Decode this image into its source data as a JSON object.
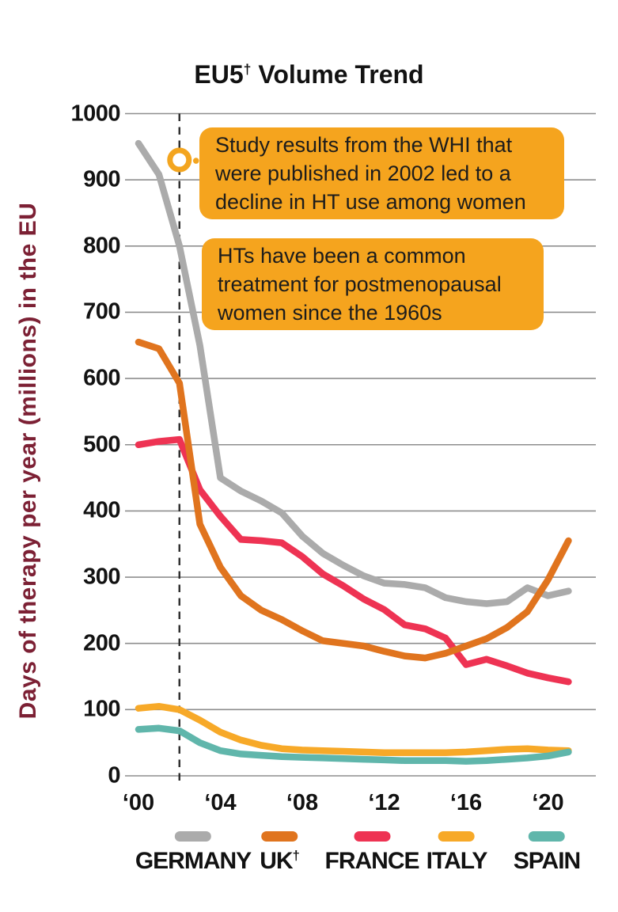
{
  "title": {
    "prefix": "EU5",
    "dagger": "†",
    "suffix": " Volume Trend"
  },
  "y_axis_label": "Days of therapy per year (millions) in the EU",
  "annotations": [
    {
      "name": "whi-study-callout",
      "lines": [
        "Study results from the WHI that",
        "were published in 2002 led to a",
        "decline in HT use among women"
      ]
    },
    {
      "name": "ht-history-callout",
      "lines": [
        "HTs have been a common",
        "treatment for postmenopausal",
        "women since the 1960s"
      ]
    }
  ],
  "colors": {
    "callout_bg": "#F5A41E",
    "marker_ring": "#F3A51F",
    "axis_label": "#7C2034",
    "gridline": "#8e8e8e",
    "event_line": "#2b2b2b"
  },
  "chart_data": {
    "type": "line",
    "title": "EU5† Volume Trend",
    "ylabel": "Days of therapy per year (millions) in the EU",
    "ylim": [
      0,
      1000
    ],
    "yticks": [
      0,
      100,
      200,
      300,
      400,
      500,
      600,
      700,
      800,
      900,
      1000
    ],
    "ytick_labels": [
      "0",
      "100",
      "200",
      "300",
      "400",
      "500",
      "600",
      "700",
      "800",
      "900",
      "1000"
    ],
    "xtick_years": [
      2000,
      2004,
      2008,
      2012,
      2016,
      2020
    ],
    "xtick_labels": [
      "‘00",
      "‘04",
      "‘08",
      "‘12",
      "‘16",
      "‘20"
    ],
    "grid": true,
    "legend_position": "bottom",
    "event_line": {
      "year": 2002,
      "style": "dashed"
    },
    "event_marker": {
      "year": 2002,
      "value": 930
    },
    "x": [
      2000,
      2001,
      2002,
      2003,
      2004,
      2005,
      2006,
      2007,
      2008,
      2009,
      2010,
      2011,
      2012,
      2013,
      2014,
      2015,
      2016,
      2017,
      2018,
      2019,
      2020,
      2021
    ],
    "series": [
      {
        "name": "GERMANY",
        "color": "#ABABAB",
        "values": [
          955,
          908,
          800,
          650,
          450,
          430,
          415,
          397,
          362,
          336,
          318,
          302,
          291,
          289,
          284,
          269,
          263,
          260,
          263,
          284,
          272,
          279
        ]
      },
      {
        "name": "UK",
        "dagger": "†",
        "color": "#E0741E",
        "values": [
          655,
          645,
          593,
          380,
          315,
          272,
          250,
          236,
          219,
          204,
          200,
          196,
          188,
          181,
          178,
          185,
          196,
          207,
          224,
          248,
          296,
          355
        ]
      },
      {
        "name": "FRANCE",
        "color": "#EE3353",
        "values": [
          500,
          505,
          508,
          432,
          392,
          357,
          355,
          352,
          331,
          305,
          287,
          267,
          251,
          228,
          222,
          208,
          168,
          176,
          166,
          155,
          148,
          142
        ]
      },
      {
        "name": "ITALY",
        "color": "#F7A928",
        "values": [
          102,
          105,
          100,
          84,
          66,
          54,
          46,
          41,
          39,
          38,
          37,
          36,
          35,
          35,
          35,
          35,
          36,
          38,
          40,
          41,
          39,
          38
        ]
      },
      {
        "name": "SPAIN",
        "color": "#60B6AB",
        "values": [
          70,
          72,
          68,
          50,
          38,
          33,
          31,
          29,
          28,
          27,
          26,
          25,
          24,
          23,
          23,
          23,
          22,
          23,
          25,
          27,
          30,
          36
        ]
      }
    ]
  }
}
